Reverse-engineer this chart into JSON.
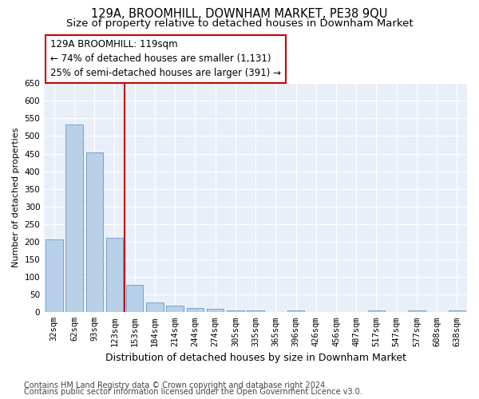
{
  "title1": "129A, BROOMHILL, DOWNHAM MARKET, PE38 9QU",
  "title2": "Size of property relative to detached houses in Downham Market",
  "xlabel": "Distribution of detached houses by size in Downham Market",
  "ylabel": "Number of detached properties",
  "categories": [
    "32sqm",
    "62sqm",
    "93sqm",
    "123sqm",
    "153sqm",
    "184sqm",
    "214sqm",
    "244sqm",
    "274sqm",
    "305sqm",
    "335sqm",
    "365sqm",
    "396sqm",
    "426sqm",
    "456sqm",
    "487sqm",
    "517sqm",
    "547sqm",
    "577sqm",
    "608sqm",
    "638sqm"
  ],
  "values": [
    207,
    533,
    453,
    211,
    78,
    28,
    19,
    13,
    10,
    5,
    5,
    0,
    5,
    0,
    0,
    0,
    5,
    0,
    5,
    0,
    5
  ],
  "bar_color": "#b8d0e8",
  "bar_edge_color": "#6699cc",
  "bg_color": "#e8eff8",
  "grid_color": "#ffffff",
  "vline_color": "#cc0000",
  "vline_x": 3.5,
  "annotation_text": "129A BROOMHILL: 119sqm\n← 74% of detached houses are smaller (1,131)\n25% of semi-detached houses are larger (391) →",
  "annotation_box_color": "#cc0000",
  "ylim": [
    0,
    650
  ],
  "yticks": [
    0,
    50,
    100,
    150,
    200,
    250,
    300,
    350,
    400,
    450,
    500,
    550,
    600,
    650
  ],
  "footer1": "Contains HM Land Registry data © Crown copyright and database right 2024.",
  "footer2": "Contains public sector information licensed under the Open Government Licence v3.0.",
  "title1_fontsize": 10.5,
  "title2_fontsize": 9.5,
  "xlabel_fontsize": 9,
  "ylabel_fontsize": 8,
  "tick_fontsize": 7.5,
  "footer_fontsize": 7,
  "ann_fontsize": 8.5
}
